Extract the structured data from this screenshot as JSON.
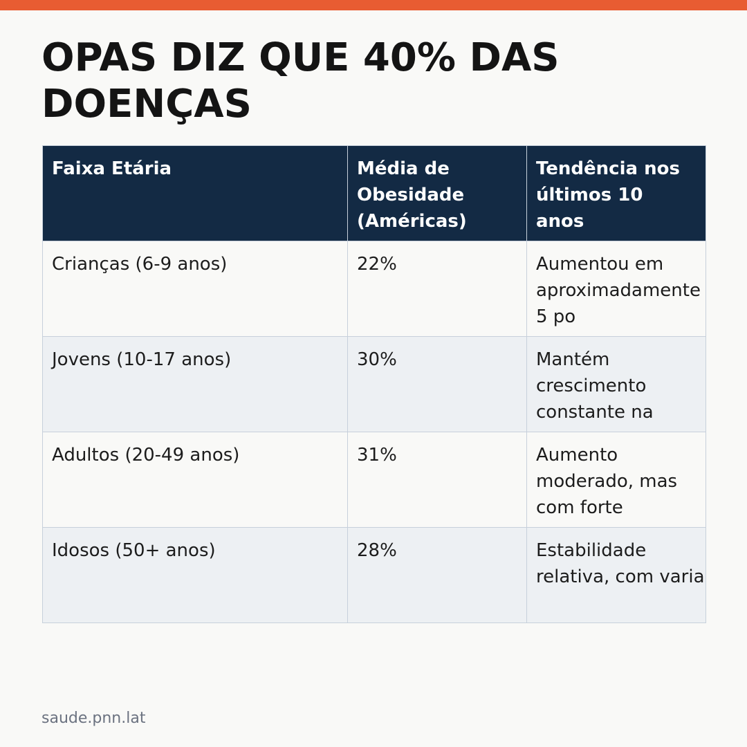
{
  "colors": {
    "accent_bar": "#e85c32",
    "header_background": "#132a44",
    "row_alt_background": "#edf0f3",
    "page_background": "#f9f9f7"
  },
  "headline": "OPAS DIZ QUE 40% DAS DOENÇAS",
  "table": {
    "headers": [
      "Faixa Etária",
      "Média de Obesidade (Américas)",
      "Tendência nos últimos 10 anos"
    ],
    "rows": [
      [
        "Crianças (6-9 anos)",
        "22%",
        "Aumentou em aproximadamente 5 po"
      ],
      [
        "Jovens (10-17 anos)",
        "30%",
        "Mantém crescimento constante na"
      ],
      [
        "Adultos (20-49 anos)",
        "31%",
        "Aumento moderado, mas com forte"
      ],
      [
        "Idosos (50+ anos)",
        "28%",
        "Estabilidade relativa, com varia"
      ]
    ]
  },
  "footer": {
    "source": "saude.pnn.lat"
  }
}
